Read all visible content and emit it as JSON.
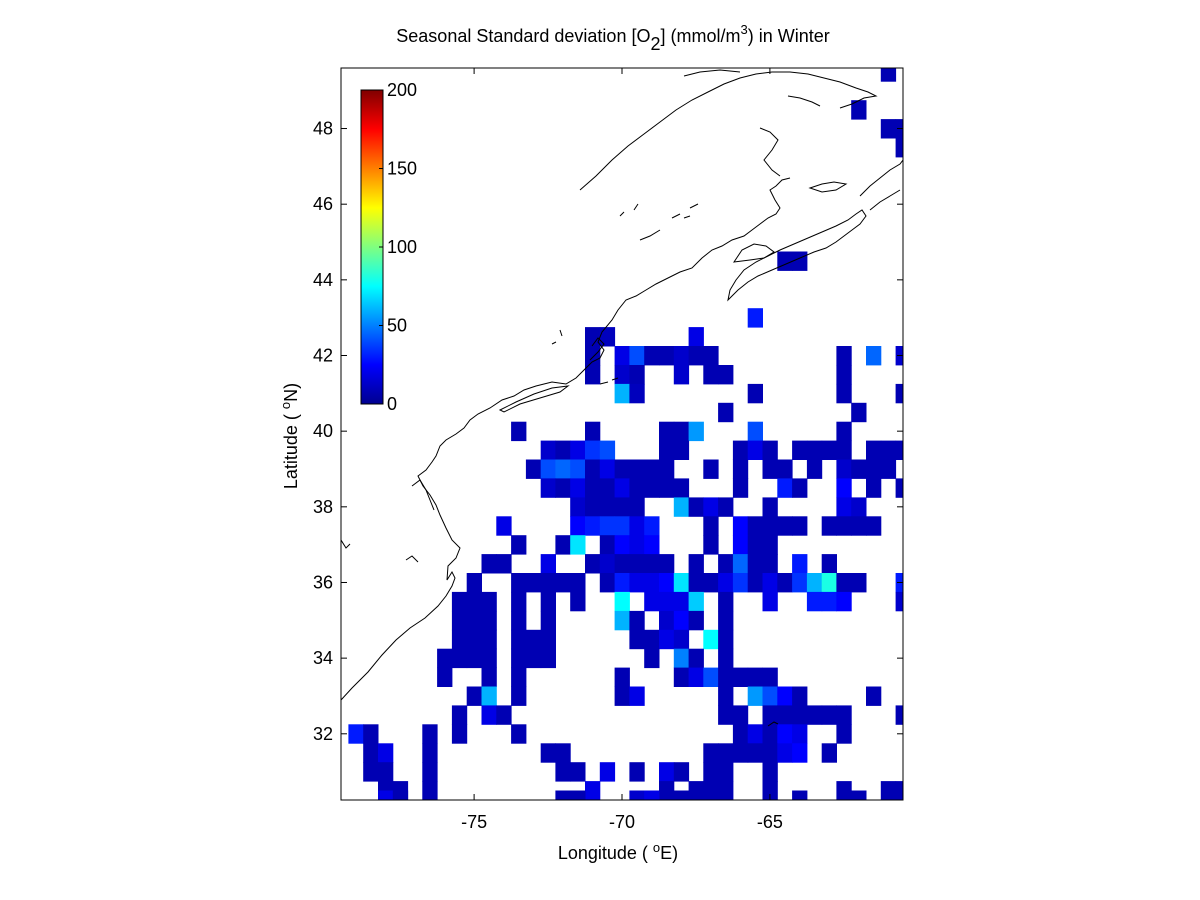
{
  "figure": {
    "title_main": "Seasonal Standard deviation [O",
    "title_sub": "2",
    "title_mid": "] (mmol/m",
    "title_sup": "3",
    "title_end": ") in  Winter",
    "xlabel_main": "Longitude ( ",
    "xlabel_sup": "o",
    "xlabel_end": "E)",
    "ylabel_main": "Latitude ( ",
    "ylabel_sup": "o",
    "ylabel_end": "N)"
  },
  "chart_data": {
    "type": "heatmap",
    "xlim": [
      -79.5,
      -60.5
    ],
    "ylim": [
      30.25,
      49.6
    ],
    "cell_size_deg": 0.5,
    "x_ticks": [
      -75,
      -70,
      -65
    ],
    "y_ticks": [
      32,
      34,
      36,
      38,
      40,
      42,
      44,
      46,
      48
    ],
    "colorbar": {
      "colormap": "jet",
      "range": [
        0,
        200
      ],
      "ticks": [
        0,
        50,
        100,
        150,
        200
      ],
      "placement": "inside-top-left"
    },
    "colors": {
      "coastline": "#000000",
      "background": "#ffffff",
      "axes": "#000000"
    },
    "cells": [
      [
        -61.0,
        49.5,
        10
      ],
      [
        -62.0,
        48.5,
        10
      ],
      [
        -61.0,
        48.0,
        10
      ],
      [
        -60.5,
        48.0,
        10
      ],
      [
        -60.5,
        47.5,
        10
      ],
      [
        -64.0,
        44.5,
        10
      ],
      [
        -64.5,
        44.5,
        10
      ],
      [
        -65.5,
        43.0,
        30
      ],
      [
        -67.5,
        42.5,
        20
      ],
      [
        -62.5,
        42.0,
        10
      ],
      [
        -60.5,
        42.0,
        15
      ],
      [
        -61.5,
        42.0,
        45
      ],
      [
        -71.0,
        42.5,
        10
      ],
      [
        -70.5,
        42.5,
        12
      ],
      [
        -71.0,
        42.0,
        10
      ],
      [
        -70.0,
        42.0,
        20
      ],
      [
        -69.5,
        42.0,
        40
      ],
      [
        -69.0,
        42.0,
        10
      ],
      [
        -68.5,
        42.0,
        10
      ],
      [
        -68.0,
        42.0,
        15
      ],
      [
        -67.5,
        42.0,
        10
      ],
      [
        -67.0,
        42.0,
        10
      ],
      [
        -71.0,
        41.5,
        10
      ],
      [
        -70.0,
        41.5,
        15
      ],
      [
        -69.5,
        41.5,
        10
      ],
      [
        -68.0,
        41.5,
        15
      ],
      [
        -67.0,
        41.5,
        10
      ],
      [
        -66.5,
        41.5,
        10
      ],
      [
        -62.5,
        41.5,
        10
      ],
      [
        -62.5,
        41.0,
        10
      ],
      [
        -70.0,
        41.0,
        60
      ],
      [
        -69.5,
        41.0,
        12
      ],
      [
        -65.5,
        41.0,
        10
      ],
      [
        -60.5,
        41.0,
        10
      ],
      [
        -66.5,
        40.5,
        10
      ],
      [
        -62.0,
        40.5,
        10
      ],
      [
        -62.5,
        40.0,
        10
      ],
      [
        -73.5,
        40.0,
        10
      ],
      [
        -71.0,
        40.0,
        10
      ],
      [
        -68.5,
        40.0,
        10
      ],
      [
        -68.0,
        40.0,
        10
      ],
      [
        -67.5,
        40.0,
        55
      ],
      [
        -65.5,
        40.0,
        40
      ],
      [
        -62.5,
        39.5,
        10
      ],
      [
        -61.5,
        39.5,
        10
      ],
      [
        -61.0,
        39.5,
        10
      ],
      [
        -60.5,
        39.5,
        10
      ],
      [
        -72.5,
        39.5,
        15
      ],
      [
        -72.0,
        39.5,
        10
      ],
      [
        -71.5,
        39.5,
        20
      ],
      [
        -71.0,
        39.5,
        35
      ],
      [
        -70.5,
        39.5,
        40
      ],
      [
        -68.5,
        39.5,
        10
      ],
      [
        -68.0,
        39.5,
        10
      ],
      [
        -66.0,
        39.5,
        10
      ],
      [
        -65.5,
        39.5,
        20
      ],
      [
        -65.0,
        39.5,
        10
      ],
      [
        -64.0,
        39.5,
        10
      ],
      [
        -63.5,
        39.5,
        10
      ],
      [
        -63.0,
        39.5,
        10
      ],
      [
        -73.0,
        39.0,
        10
      ],
      [
        -72.5,
        39.0,
        40
      ],
      [
        -72.0,
        39.0,
        45
      ],
      [
        -71.5,
        39.0,
        40
      ],
      [
        -71.0,
        39.0,
        10
      ],
      [
        -70.5,
        39.0,
        20
      ],
      [
        -70.0,
        39.0,
        10
      ],
      [
        -69.5,
        39.0,
        10
      ],
      [
        -69.0,
        39.0,
        10
      ],
      [
        -68.5,
        39.0,
        10
      ],
      [
        -67.0,
        39.0,
        10
      ],
      [
        -66.0,
        39.0,
        10
      ],
      [
        -65.0,
        39.0,
        10
      ],
      [
        -64.5,
        39.0,
        10
      ],
      [
        -63.5,
        39.0,
        10
      ],
      [
        -62.5,
        39.0,
        15
      ],
      [
        -62.0,
        39.0,
        10
      ],
      [
        -61.5,
        39.0,
        10
      ],
      [
        -61.0,
        39.0,
        10
      ],
      [
        -72.5,
        38.5,
        15
      ],
      [
        -72.0,
        38.5,
        10
      ],
      [
        -71.5,
        38.5,
        20
      ],
      [
        -71.0,
        38.5,
        10
      ],
      [
        -70.5,
        38.5,
        10
      ],
      [
        -70.0,
        38.5,
        20
      ],
      [
        -69.5,
        38.5,
        10
      ],
      [
        -69.0,
        38.5,
        10
      ],
      [
        -68.5,
        38.5,
        10
      ],
      [
        -68.0,
        38.5,
        10
      ],
      [
        -66.0,
        38.5,
        10
      ],
      [
        -64.5,
        38.5,
        30
      ],
      [
        -64.0,
        38.5,
        10
      ],
      [
        -62.5,
        38.5,
        25
      ],
      [
        -61.5,
        38.5,
        10
      ],
      [
        -60.5,
        38.5,
        10
      ],
      [
        -71.5,
        38.0,
        15
      ],
      [
        -71.0,
        38.0,
        10
      ],
      [
        -70.5,
        38.0,
        10
      ],
      [
        -70.0,
        38.0,
        10
      ],
      [
        -69.5,
        38.0,
        10
      ],
      [
        -68.0,
        38.0,
        60
      ],
      [
        -67.5,
        38.0,
        10
      ],
      [
        -67.0,
        38.0,
        20
      ],
      [
        -66.5,
        38.0,
        10
      ],
      [
        -65.0,
        38.0,
        10
      ],
      [
        -62.5,
        38.0,
        20
      ],
      [
        -62.0,
        38.0,
        15
      ],
      [
        -74.0,
        37.5,
        20
      ],
      [
        -71.5,
        37.5,
        25
      ],
      [
        -71.0,
        37.5,
        30
      ],
      [
        -70.5,
        37.5,
        35
      ],
      [
        -70.0,
        37.5,
        35
      ],
      [
        -69.5,
        37.5,
        20
      ],
      [
        -69.0,
        37.5,
        30
      ],
      [
        -67.0,
        37.5,
        10
      ],
      [
        -66.0,
        37.5,
        25
      ],
      [
        -65.5,
        37.5,
        10
      ],
      [
        -65.0,
        37.5,
        10
      ],
      [
        -64.5,
        37.5,
        10
      ],
      [
        -64.0,
        37.5,
        10
      ],
      [
        -63.0,
        37.5,
        10
      ],
      [
        -62.5,
        37.5,
        10
      ],
      [
        -62.0,
        37.5,
        10
      ],
      [
        -61.5,
        37.5,
        10
      ],
      [
        -73.5,
        37.0,
        10
      ],
      [
        -72.0,
        37.0,
        10
      ],
      [
        -71.5,
        37.0,
        70
      ],
      [
        -70.5,
        37.0,
        10
      ],
      [
        -70.0,
        37.0,
        25
      ],
      [
        -69.5,
        37.0,
        20
      ],
      [
        -69.0,
        37.0,
        25
      ],
      [
        -67.0,
        37.0,
        10
      ],
      [
        -66.0,
        37.0,
        25
      ],
      [
        -65.5,
        37.0,
        10
      ],
      [
        -65.0,
        37.0,
        10
      ],
      [
        -74.5,
        36.5,
        10
      ],
      [
        -74.0,
        36.5,
        10
      ],
      [
        -72.5,
        36.5,
        20
      ],
      [
        -71.0,
        36.5,
        10
      ],
      [
        -70.5,
        36.5,
        15
      ],
      [
        -70.0,
        36.5,
        10
      ],
      [
        -69.5,
        36.5,
        10
      ],
      [
        -69.0,
        36.5,
        10
      ],
      [
        -68.5,
        36.5,
        10
      ],
      [
        -67.5,
        36.5,
        10
      ],
      [
        -66.5,
        36.5,
        10
      ],
      [
        -66.0,
        36.5,
        45
      ],
      [
        -65.5,
        36.5,
        10
      ],
      [
        -65.0,
        36.5,
        10
      ],
      [
        -64.0,
        36.5,
        30
      ],
      [
        -63.0,
        36.5,
        10
      ],
      [
        -75.0,
        36.0,
        10
      ],
      [
        -73.5,
        36.0,
        10
      ],
      [
        -73.0,
        36.0,
        10
      ],
      [
        -72.5,
        36.0,
        10
      ],
      [
        -72.0,
        36.0,
        10
      ],
      [
        -71.5,
        36.0,
        10
      ],
      [
        -70.5,
        36.0,
        10
      ],
      [
        -70.0,
        36.0,
        30
      ],
      [
        -69.5,
        36.0,
        20
      ],
      [
        -69.0,
        36.0,
        20
      ],
      [
        -68.5,
        36.0,
        25
      ],
      [
        -68.0,
        36.0,
        70
      ],
      [
        -67.5,
        36.0,
        10
      ],
      [
        -67.0,
        36.0,
        10
      ],
      [
        -66.5,
        36.0,
        20
      ],
      [
        -66.0,
        36.0,
        35
      ],
      [
        -65.5,
        36.0,
        10
      ],
      [
        -65.0,
        36.0,
        20
      ],
      [
        -64.5,
        36.0,
        10
      ],
      [
        -64.0,
        36.0,
        35
      ],
      [
        -63.5,
        36.0,
        60
      ],
      [
        -63.0,
        36.0,
        80
      ],
      [
        -62.5,
        36.0,
        10
      ],
      [
        -62.0,
        36.0,
        10
      ],
      [
        -60.5,
        36.0,
        30
      ],
      [
        -75.5,
        35.5,
        10
      ],
      [
        -75.0,
        35.5,
        10
      ],
      [
        -74.5,
        35.5,
        10
      ],
      [
        -73.5,
        35.5,
        10
      ],
      [
        -72.5,
        35.5,
        10
      ],
      [
        -71.5,
        35.5,
        10
      ],
      [
        -70.0,
        35.5,
        75
      ],
      [
        -69.0,
        35.5,
        20
      ],
      [
        -68.5,
        35.5,
        20
      ],
      [
        -68.0,
        35.5,
        20
      ],
      [
        -67.5,
        35.5,
        65
      ],
      [
        -66.5,
        35.5,
        10
      ],
      [
        -65.0,
        35.5,
        20
      ],
      [
        -63.5,
        35.5,
        30
      ],
      [
        -63.0,
        35.5,
        30
      ],
      [
        -62.5,
        35.5,
        25
      ],
      [
        -60.5,
        35.5,
        15
      ],
      [
        -75.5,
        35.0,
        10
      ],
      [
        -75.0,
        35.0,
        10
      ],
      [
        -74.5,
        35.0,
        10
      ],
      [
        -73.5,
        35.0,
        10
      ],
      [
        -72.5,
        35.0,
        10
      ],
      [
        -70.0,
        35.0,
        60
      ],
      [
        -69.5,
        35.0,
        10
      ],
      [
        -68.5,
        35.0,
        15
      ],
      [
        -68.0,
        35.0,
        25
      ],
      [
        -67.5,
        35.0,
        10
      ],
      [
        -66.5,
        35.0,
        10
      ],
      [
        -75.5,
        34.5,
        10
      ],
      [
        -75.0,
        34.5,
        10
      ],
      [
        -74.5,
        34.5,
        10
      ],
      [
        -73.5,
        34.5,
        10
      ],
      [
        -73.0,
        34.5,
        10
      ],
      [
        -72.5,
        34.5,
        10
      ],
      [
        -69.5,
        34.5,
        10
      ],
      [
        -69.0,
        34.5,
        10
      ],
      [
        -68.5,
        34.5,
        20
      ],
      [
        -68.0,
        34.5,
        15
      ],
      [
        -67.0,
        34.5,
        75
      ],
      [
        -66.5,
        34.5,
        10
      ],
      [
        -76.0,
        34.0,
        10
      ],
      [
        -75.5,
        34.0,
        10
      ],
      [
        -75.0,
        34.0,
        10
      ],
      [
        -74.5,
        34.0,
        10
      ],
      [
        -73.5,
        34.0,
        10
      ],
      [
        -73.0,
        34.0,
        10
      ],
      [
        -72.5,
        34.0,
        10
      ],
      [
        -69.0,
        34.0,
        10
      ],
      [
        -68.0,
        34.0,
        50
      ],
      [
        -67.5,
        34.0,
        10
      ],
      [
        -66.5,
        34.0,
        10
      ],
      [
        -76.0,
        33.5,
        10
      ],
      [
        -74.5,
        33.5,
        10
      ],
      [
        -73.5,
        33.5,
        10
      ],
      [
        -70.0,
        33.5,
        10
      ],
      [
        -68.0,
        33.5,
        10
      ],
      [
        -67.5,
        33.5,
        20
      ],
      [
        -67.0,
        33.5,
        40
      ],
      [
        -66.5,
        33.5,
        10
      ],
      [
        -66.0,
        33.5,
        10
      ],
      [
        -65.5,
        33.5,
        10
      ],
      [
        -65.0,
        33.5,
        10
      ],
      [
        -75.0,
        33.0,
        10
      ],
      [
        -74.5,
        33.0,
        60
      ],
      [
        -73.5,
        33.0,
        10
      ],
      [
        -70.0,
        33.0,
        10
      ],
      [
        -69.5,
        33.0,
        20
      ],
      [
        -66.5,
        33.0,
        10
      ],
      [
        -65.5,
        33.0,
        55
      ],
      [
        -65.0,
        33.0,
        40
      ],
      [
        -64.5,
        33.0,
        25
      ],
      [
        -64.0,
        33.0,
        10
      ],
      [
        -61.5,
        33.0,
        10
      ],
      [
        -75.5,
        32.5,
        10
      ],
      [
        -74.5,
        32.5,
        20
      ],
      [
        -74.0,
        32.5,
        10
      ],
      [
        -66.5,
        32.5,
        10
      ],
      [
        -66.0,
        32.5,
        10
      ],
      [
        -65.0,
        32.5,
        10
      ],
      [
        -64.5,
        32.5,
        10
      ],
      [
        -64.0,
        32.5,
        10
      ],
      [
        -63.5,
        32.5,
        10
      ],
      [
        -63.0,
        32.5,
        10
      ],
      [
        -62.5,
        32.5,
        10
      ],
      [
        -60.5,
        32.5,
        10
      ],
      [
        -79.0,
        32.0,
        30
      ],
      [
        -78.5,
        32.0,
        10
      ],
      [
        -76.5,
        32.0,
        10
      ],
      [
        -75.5,
        32.0,
        10
      ],
      [
        -73.5,
        32.0,
        10
      ],
      [
        -66.0,
        32.0,
        10
      ],
      [
        -65.5,
        32.0,
        20
      ],
      [
        -65.0,
        32.0,
        10
      ],
      [
        -64.5,
        32.0,
        25
      ],
      [
        -64.0,
        32.0,
        20
      ],
      [
        -62.5,
        32.0,
        10
      ],
      [
        -78.5,
        31.5,
        10
      ],
      [
        -78.0,
        31.5,
        20
      ],
      [
        -76.5,
        31.5,
        10
      ],
      [
        -72.5,
        31.5,
        10
      ],
      [
        -72.0,
        31.5,
        10
      ],
      [
        -67.0,
        31.5,
        10
      ],
      [
        -66.5,
        31.5,
        10
      ],
      [
        -66.0,
        31.5,
        10
      ],
      [
        -65.5,
        31.5,
        10
      ],
      [
        -65.0,
        31.5,
        10
      ],
      [
        -64.5,
        31.5,
        20
      ],
      [
        -64.0,
        31.5,
        25
      ],
      [
        -63.0,
        31.5,
        10
      ],
      [
        -78.5,
        31.0,
        10
      ],
      [
        -78.0,
        31.0,
        10
      ],
      [
        -76.5,
        31.0,
        10
      ],
      [
        -72.0,
        31.0,
        10
      ],
      [
        -71.5,
        31.0,
        10
      ],
      [
        -70.5,
        31.0,
        20
      ],
      [
        -69.5,
        31.0,
        10
      ],
      [
        -68.5,
        31.0,
        20
      ],
      [
        -68.0,
        31.0,
        10
      ],
      [
        -67.0,
        31.0,
        10
      ],
      [
        -66.5,
        31.0,
        10
      ],
      [
        -65.0,
        31.0,
        10
      ],
      [
        -78.0,
        30.5,
        10
      ],
      [
        -77.5,
        30.5,
        10
      ],
      [
        -76.5,
        30.5,
        10
      ],
      [
        -71.0,
        30.5,
        20
      ],
      [
        -68.5,
        30.5,
        10
      ],
      [
        -67.5,
        30.5,
        10
      ],
      [
        -67.0,
        30.5,
        10
      ],
      [
        -66.5,
        30.5,
        10
      ],
      [
        -65.0,
        30.5,
        10
      ],
      [
        -62.5,
        30.5,
        10
      ],
      [
        -61.0,
        30.5,
        10
      ],
      [
        -60.5,
        30.5,
        10
      ],
      [
        -78.0,
        30.25,
        20
      ],
      [
        -77.5,
        30.25,
        10
      ],
      [
        -72.0,
        30.25,
        10
      ],
      [
        -71.5,
        30.25,
        10
      ],
      [
        -69.5,
        30.25,
        15
      ],
      [
        -69.0,
        30.25,
        20
      ],
      [
        -68.0,
        30.25,
        10
      ],
      [
        -67.5,
        30.25,
        10
      ],
      [
        -67.0,
        30.25,
        10
      ],
      [
        -64.0,
        30.25,
        10
      ],
      [
        -62.0,
        30.25,
        10
      ]
    ]
  }
}
